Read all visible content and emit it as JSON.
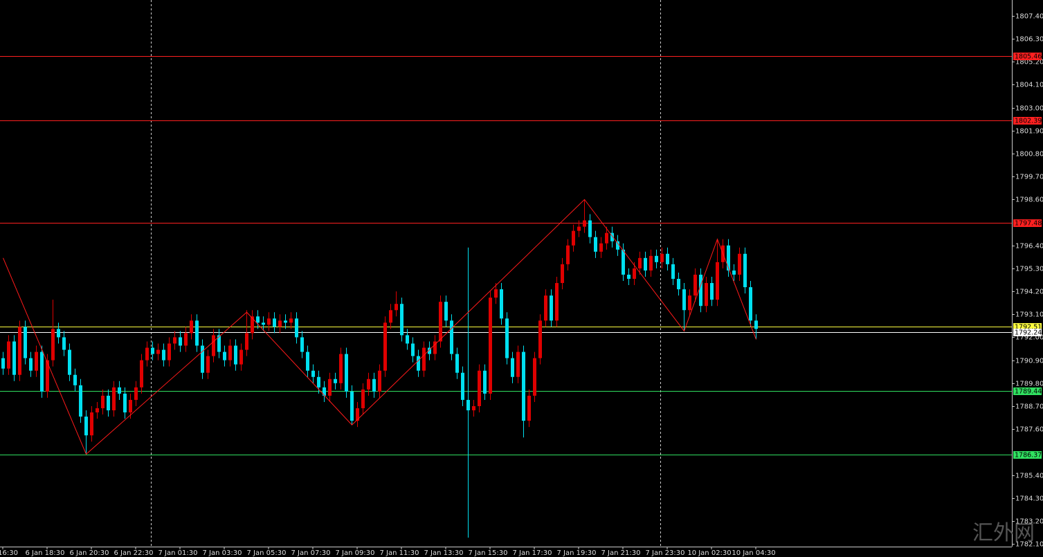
{
  "chart_data": {
    "type": "candlestick",
    "watermark": "汇外网",
    "up_color": "#e00000",
    "down_color": "#00e0f0",
    "zigzag_color": "#ff1a1a",
    "ylim": [
      1781.97,
      1808.16
    ],
    "yticks": [
      {
        "value": 1807.4,
        "label": "1807.40"
      },
      {
        "value": 1806.3,
        "label": "1806.30"
      },
      {
        "value": 1805.2,
        "label": "1805.20"
      },
      {
        "value": 1804.1,
        "label": "1804.10"
      },
      {
        "value": 1803.0,
        "label": "1803.00"
      },
      {
        "value": 1801.9,
        "label": "1801.90"
      },
      {
        "value": 1800.8,
        "label": "1800.80"
      },
      {
        "value": 1799.7,
        "label": "1799.70"
      },
      {
        "value": 1798.6,
        "label": "1798.60"
      },
      {
        "value": 1796.4,
        "label": "1796.40"
      },
      {
        "value": 1795.3,
        "label": "1795.30"
      },
      {
        "value": 1794.2,
        "label": "1794.20"
      },
      {
        "value": 1793.1,
        "label": "1793.10"
      },
      {
        "value": 1792.0,
        "label": "1792.00"
      },
      {
        "value": 1790.9,
        "label": "1790.90"
      },
      {
        "value": 1789.8,
        "label": "1789.80"
      },
      {
        "value": 1788.7,
        "label": "1788.70"
      },
      {
        "value": 1787.6,
        "label": "1787.60"
      },
      {
        "value": 1785.4,
        "label": "1785.40"
      },
      {
        "value": 1784.3,
        "label": "1784.30"
      },
      {
        "value": 1783.2,
        "label": "1783.20"
      },
      {
        "value": 1782.1,
        "label": "1782.10"
      }
    ],
    "xlabels": [
      "16:30",
      "6 Jan 18:30",
      "6 Jan 20:30",
      "6 Jan 22:30",
      "7 Jan 01:30",
      "7 Jan 03:30",
      "7 Jan 05:30",
      "7 Jan 07:30",
      "7 Jan 09:30",
      "7 Jan 11:30",
      "7 Jan 13:30",
      "7 Jan 15:30",
      "7 Jan 17:30",
      "7 Jan 19:30",
      "7 Jan 21:30",
      "7 Jan 23:30",
      "10 Jan 02:30",
      "10 Jan 04:30"
    ],
    "levels": [
      {
        "value": 1805.46,
        "color": "#ff2020"
      },
      {
        "value": 1802.39,
        "color": "#ff2020"
      },
      {
        "value": 1797.48,
        "color": "#ff2020"
      },
      {
        "value": 1792.51,
        "color": "#ffff40"
      },
      {
        "value": 1792.24,
        "color": "#ffffff"
      },
      {
        "value": 1789.44,
        "color": "#30e060"
      },
      {
        "value": 1786.37,
        "color": "#30e060"
      }
    ],
    "open": [
      1791.0,
      1790.5,
      1791.8,
      1790.2,
      1792.5,
      1791.0,
      1790.4,
      1791.3,
      1789.4,
      1790.9,
      1792.4,
      1792.0,
      1791.4,
      1790.2,
      1789.7,
      1788.2,
      1787.3,
      1788.4,
      1788.6,
      1789.2,
      1788.5,
      1789.6,
      1789.3,
      1788.4,
      1789.0,
      1789.6,
      1790.9,
      1791.5,
      1791.2,
      1791.4,
      1790.9,
      1791.7,
      1792.0,
      1791.6,
      1792.2,
      1792.8,
      1791.6,
      1790.3,
      1791.1,
      1792.1,
      1791.3,
      1790.9,
      1791.6,
      1790.7,
      1791.4,
      1792.2,
      1793.0,
      1792.7,
      1792.6,
      1792.9,
      1792.5,
      1792.8,
      1792.7,
      1792.9,
      1792.0,
      1791.3,
      1790.4,
      1790.1,
      1789.6,
      1789.2,
      1790.0,
      1789.8,
      1791.2,
      1789.4,
      1788.0,
      1788.6,
      1789.5,
      1790.0,
      1789.4,
      1790.4,
      1792.7,
      1793.3,
      1793.6,
      1792.1,
      1791.7,
      1791.1,
      1790.4,
      1791.5,
      1791.2,
      1791.8,
      1793.7,
      1792.8,
      1791.2,
      1790.3,
      1789.0,
      1788.5,
      1788.7,
      1790.4,
      1789.3,
      1793.9,
      1794.3,
      1792.9,
      1791.0,
      1790.1,
      1791.3,
      1788.0,
      1789.2,
      1791.0,
      1792.8,
      1794.0,
      1792.8,
      1794.6,
      1795.5,
      1796.4,
      1797.1,
      1797.3,
      1797.6,
      1796.8,
      1796.1,
      1796.5,
      1797.0,
      1796.6,
      1796.2,
      1795.0,
      1794.8,
      1795.3,
      1795.8,
      1795.2,
      1795.9,
      1795.6,
      1796.0,
      1795.5,
      1794.8,
      1794.3,
      1793.3,
      1794.0,
      1795.0,
      1793.5,
      1794.6,
      1793.8,
      1795.6,
      1796.4,
      1795.2,
      1795.0,
      1796.0,
      1794.4,
      1792.8
    ],
    "high": [
      1791.3,
      1792.1,
      1792.1,
      1792.8,
      1792.8,
      1791.3,
      1791.6,
      1791.6,
      1791.2,
      1793.8,
      1792.7,
      1792.3,
      1791.7,
      1790.5,
      1790.0,
      1788.5,
      1788.7,
      1788.9,
      1789.5,
      1789.5,
      1789.9,
      1789.9,
      1789.6,
      1789.3,
      1789.9,
      1791.2,
      1791.8,
      1791.8,
      1791.7,
      1791.7,
      1792.0,
      1792.3,
      1792.3,
      1792.5,
      1793.1,
      1793.1,
      1791.9,
      1791.4,
      1792.4,
      1792.4,
      1791.6,
      1791.9,
      1791.9,
      1791.7,
      1793.3,
      1793.3,
      1793.3,
      1793.0,
      1793.2,
      1793.2,
      1793.1,
      1793.1,
      1793.2,
      1793.2,
      1792.3,
      1791.6,
      1790.7,
      1790.4,
      1789.9,
      1790.3,
      1790.3,
      1791.5,
      1791.5,
      1789.7,
      1788.9,
      1789.8,
      1790.3,
      1790.3,
      1790.7,
      1793.0,
      1793.6,
      1794.2,
      1793.9,
      1792.4,
      1792.0,
      1791.4,
      1791.8,
      1791.8,
      1792.1,
      1794.0,
      1794.0,
      1793.1,
      1791.5,
      1790.6,
      1796.3,
      1789.0,
      1790.7,
      1790.7,
      1794.2,
      1794.6,
      1794.6,
      1793.2,
      1791.3,
      1791.6,
      1791.6,
      1789.5,
      1791.3,
      1793.1,
      1794.3,
      1794.3,
      1794.9,
      1795.8,
      1796.7,
      1797.4,
      1797.6,
      1798.6,
      1797.9,
      1797.1,
      1796.8,
      1797.3,
      1797.3,
      1796.9,
      1796.5,
      1795.3,
      1795.6,
      1796.1,
      1796.1,
      1796.2,
      1796.2,
      1796.3,
      1796.3,
      1795.8,
      1795.1,
      1794.6,
      1794.3,
      1795.3,
      1795.3,
      1794.9,
      1794.9,
      1796.7,
      1796.7,
      1796.7,
      1795.5,
      1796.3,
      1796.3,
      1794.7,
      1793.1
    ],
    "low": [
      1790.2,
      1790.2,
      1789.9,
      1789.9,
      1790.7,
      1790.1,
      1790.1,
      1789.1,
      1789.1,
      1790.6,
      1791.7,
      1791.1,
      1789.9,
      1789.4,
      1787.9,
      1786.4,
      1787.0,
      1788.1,
      1788.3,
      1788.2,
      1788.2,
      1789.0,
      1788.1,
      1788.1,
      1788.7,
      1789.3,
      1790.6,
      1790.9,
      1790.9,
      1790.6,
      1790.6,
      1791.4,
      1791.3,
      1791.3,
      1791.9,
      1791.3,
      1790.0,
      1790.0,
      1790.8,
      1791.0,
      1790.6,
      1790.6,
      1790.4,
      1790.4,
      1791.1,
      1791.9,
      1792.4,
      1792.3,
      1792.3,
      1792.2,
      1792.2,
      1792.4,
      1792.4,
      1791.7,
      1791.0,
      1790.1,
      1789.8,
      1789.3,
      1788.9,
      1788.9,
      1789.5,
      1789.5,
      1789.1,
      1787.8,
      1787.7,
      1788.3,
      1789.2,
      1789.1,
      1789.1,
      1790.1,
      1792.4,
      1793.0,
      1791.8,
      1791.4,
      1790.8,
      1790.1,
      1790.1,
      1790.9,
      1790.9,
      1791.5,
      1792.5,
      1790.9,
      1790.0,
      1788.7,
      1782.4,
      1788.2,
      1788.4,
      1789.0,
      1789.0,
      1793.6,
      1792.6,
      1790.7,
      1789.8,
      1789.8,
      1787.2,
      1787.7,
      1788.9,
      1790.7,
      1792.5,
      1792.5,
      1792.5,
      1794.3,
      1795.2,
      1796.1,
      1796.8,
      1797.0,
      1796.5,
      1795.8,
      1795.8,
      1796.2,
      1796.3,
      1795.9,
      1794.7,
      1794.5,
      1794.5,
      1795.0,
      1794.9,
      1794.9,
      1795.3,
      1795.3,
      1795.2,
      1794.5,
      1794.0,
      1792.3,
      1793.0,
      1793.7,
      1793.2,
      1793.2,
      1793.5,
      1793.5,
      1795.3,
      1794.9,
      1794.7,
      1794.7,
      1794.1,
      1792.5,
      1791.9
    ],
    "close": [
      1790.5,
      1791.8,
      1790.2,
      1792.5,
      1791.0,
      1790.4,
      1791.3,
      1789.4,
      1790.9,
      1792.4,
      1792.0,
      1791.4,
      1790.2,
      1789.7,
      1788.2,
      1787.3,
      1788.4,
      1788.6,
      1789.2,
      1788.5,
      1789.6,
      1789.3,
      1788.4,
      1789.0,
      1789.6,
      1790.9,
      1791.5,
      1791.2,
      1791.4,
      1790.9,
      1791.7,
      1792.0,
      1791.6,
      1792.2,
      1792.8,
      1791.6,
      1790.3,
      1791.1,
      1792.1,
      1791.3,
      1790.9,
      1791.6,
      1790.7,
      1791.4,
      1792.2,
      1793.0,
      1792.7,
      1792.6,
      1792.9,
      1792.5,
      1792.8,
      1792.7,
      1792.9,
      1792.0,
      1791.3,
      1790.4,
      1790.1,
      1789.6,
      1789.2,
      1790.0,
      1789.8,
      1791.2,
      1789.4,
      1788.0,
      1788.6,
      1789.5,
      1790.0,
      1789.4,
      1790.4,
      1792.7,
      1793.3,
      1793.6,
      1792.1,
      1791.7,
      1791.1,
      1790.4,
      1791.5,
      1791.2,
      1791.8,
      1793.7,
      1792.8,
      1791.2,
      1790.3,
      1789.0,
      1788.5,
      1788.7,
      1790.4,
      1789.3,
      1793.9,
      1794.3,
      1792.9,
      1791.0,
      1790.1,
      1791.3,
      1788.0,
      1789.2,
      1791.0,
      1792.8,
      1794.0,
      1792.8,
      1794.6,
      1795.5,
      1796.4,
      1797.1,
      1797.3,
      1797.6,
      1796.8,
      1796.1,
      1796.5,
      1797.0,
      1796.6,
      1796.2,
      1795.0,
      1794.8,
      1795.3,
      1795.8,
      1795.2,
      1795.9,
      1795.6,
      1796.0,
      1795.5,
      1794.8,
      1794.3,
      1793.3,
      1794.0,
      1795.0,
      1793.5,
      1794.6,
      1793.8,
      1795.6,
      1796.4,
      1795.2,
      1795.0,
      1796.0,
      1794.4,
      1792.8,
      1792.4
    ],
    "zigzag": {
      "index": [
        0,
        15,
        44,
        63,
        105,
        123,
        129,
        136
      ],
      "values": [
        1795.8,
        1786.4,
        1793.2,
        1787.8,
        1798.6,
        1792.3,
        1796.7,
        1791.9
      ]
    }
  }
}
